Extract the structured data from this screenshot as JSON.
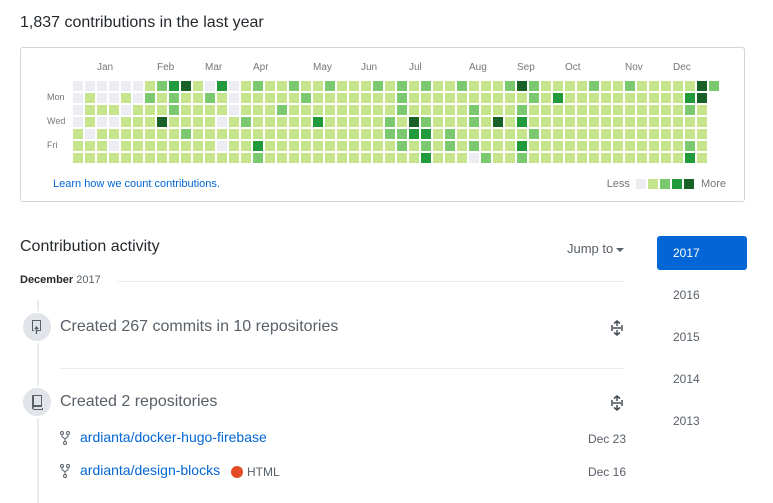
{
  "header": {
    "title": "1,837 contributions in the last year"
  },
  "graph": {
    "months": [
      {
        "label": "Jan",
        "col": 2
      },
      {
        "label": "Feb",
        "col": 7
      },
      {
        "label": "Mar",
        "col": 11
      },
      {
        "label": "Apr",
        "col": 15
      },
      {
        "label": "May",
        "col": 20
      },
      {
        "label": "Jun",
        "col": 24
      },
      {
        "label": "Jul",
        "col": 28
      },
      {
        "label": "Aug",
        "col": 33
      },
      {
        "label": "Sep",
        "col": 37
      },
      {
        "label": "Oct",
        "col": 41
      },
      {
        "label": "Nov",
        "col": 46
      },
      {
        "label": "Dec",
        "col": 50
      }
    ],
    "days": [
      {
        "label": "Mon",
        "row": 1
      },
      {
        "label": "Wed",
        "row": 3
      },
      {
        "label": "Fri",
        "row": 5
      }
    ],
    "learn_link": "Learn how we count contributions.",
    "legend_less": "Less",
    "legend_more": "More",
    "colors": [
      "#ebedf0",
      "#c6e48b",
      "#7bc96f",
      "#239a3b",
      "#196127"
    ],
    "weeks": [
      [
        0,
        0,
        0,
        0,
        1,
        1,
        1
      ],
      [
        0,
        1,
        1,
        1,
        0,
        1,
        1
      ],
      [
        0,
        0,
        1,
        0,
        1,
        1,
        1
      ],
      [
        0,
        0,
        1,
        0,
        1,
        0,
        1
      ],
      [
        0,
        1,
        0,
        1,
        1,
        1,
        1
      ],
      [
        0,
        0,
        1,
        1,
        1,
        1,
        1
      ],
      [
        1,
        2,
        1,
        1,
        1,
        1,
        1
      ],
      [
        2,
        1,
        1,
        4,
        1,
        1,
        1
      ],
      [
        3,
        2,
        2,
        1,
        1,
        1,
        1
      ],
      [
        4,
        1,
        1,
        1,
        2,
        1,
        1
      ],
      [
        1,
        1,
        1,
        1,
        1,
        1,
        1
      ],
      [
        0,
        2,
        1,
        1,
        1,
        1,
        1
      ],
      [
        3,
        1,
        1,
        0,
        1,
        0,
        1
      ],
      [
        0,
        0,
        0,
        1,
        1,
        1,
        1
      ],
      [
        1,
        1,
        1,
        2,
        1,
        1,
        1
      ],
      [
        2,
        1,
        1,
        1,
        1,
        3,
        2
      ],
      [
        1,
        1,
        1,
        1,
        1,
        1,
        1
      ],
      [
        1,
        1,
        2,
        1,
        1,
        1,
        1
      ],
      [
        2,
        1,
        1,
        1,
        1,
        1,
        1
      ],
      [
        1,
        2,
        1,
        1,
        1,
        1,
        1
      ],
      [
        1,
        1,
        1,
        3,
        1,
        1,
        1
      ],
      [
        2,
        1,
        1,
        1,
        1,
        1,
        1
      ],
      [
        1,
        1,
        1,
        1,
        1,
        1,
        1
      ],
      [
        1,
        1,
        1,
        1,
        1,
        1,
        1
      ],
      [
        1,
        1,
        1,
        1,
        1,
        1,
        1
      ],
      [
        2,
        1,
        1,
        1,
        1,
        1,
        1
      ],
      [
        1,
        1,
        1,
        2,
        2,
        1,
        1
      ],
      [
        2,
        2,
        2,
        1,
        2,
        2,
        1
      ],
      [
        1,
        1,
        1,
        4,
        3,
        1,
        1
      ],
      [
        2,
        1,
        1,
        2,
        3,
        2,
        3
      ],
      [
        1,
        1,
        1,
        1,
        1,
        1,
        1
      ],
      [
        1,
        1,
        1,
        1,
        2,
        2,
        1
      ],
      [
        2,
        1,
        1,
        1,
        1,
        1,
        1
      ],
      [
        1,
        1,
        2,
        2,
        1,
        2,
        0
      ],
      [
        1,
        1,
        1,
        1,
        1,
        1,
        2
      ],
      [
        1,
        1,
        1,
        4,
        1,
        1,
        1
      ],
      [
        2,
        1,
        1,
        1,
        1,
        1,
        1
      ],
      [
        4,
        1,
        2,
        3,
        1,
        3,
        2
      ],
      [
        2,
        2,
        1,
        1,
        2,
        1,
        1
      ],
      [
        1,
        1,
        1,
        1,
        1,
        1,
        1
      ],
      [
        1,
        3,
        1,
        1,
        1,
        1,
        1
      ],
      [
        1,
        1,
        1,
        1,
        1,
        1,
        1
      ],
      [
        1,
        1,
        1,
        1,
        1,
        1,
        1
      ],
      [
        2,
        1,
        1,
        1,
        1,
        1,
        1
      ],
      [
        1,
        1,
        1,
        1,
        1,
        1,
        1
      ],
      [
        1,
        1,
        1,
        1,
        1,
        1,
        1
      ],
      [
        2,
        1,
        1,
        1,
        1,
        1,
        1
      ],
      [
        1,
        1,
        1,
        1,
        1,
        1,
        1
      ],
      [
        1,
        1,
        1,
        1,
        1,
        1,
        1
      ],
      [
        1,
        1,
        1,
        1,
        1,
        1,
        1
      ],
      [
        1,
        1,
        1,
        1,
        1,
        1,
        1
      ],
      [
        1,
        3,
        2,
        1,
        1,
        2,
        3
      ],
      [
        4,
        4,
        1,
        1,
        1,
        1,
        1
      ],
      [
        2,
        null,
        null,
        null,
        null,
        null,
        null
      ]
    ]
  },
  "activity": {
    "title": "Contribution activity",
    "jump_label": "Jump to",
    "month": "December",
    "month_year": "2017",
    "items": [
      {
        "title": "Created 267 commits in 10 repositories"
      },
      {
        "title": "Created 2 repositories"
      }
    ],
    "repos": [
      {
        "name": "ardianta/docker-hugo-firebase",
        "date": "Dec 23"
      },
      {
        "name": "ardianta/design-blocks",
        "date": "Dec 16",
        "language": "HTML",
        "lang_color": "#e34c26"
      }
    ]
  },
  "years": [
    "2017",
    "2016",
    "2015",
    "2014",
    "2013"
  ],
  "selected_year": "2017"
}
